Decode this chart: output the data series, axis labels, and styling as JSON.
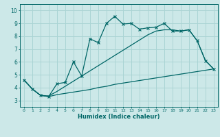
{
  "title": "",
  "xlabel": "Humidex (Indice chaleur)",
  "background_color": "#cce8e8",
  "line_color": "#006666",
  "xlim": [
    -0.5,
    23.5
  ],
  "ylim": [
    2.5,
    10.5
  ],
  "xticks": [
    0,
    1,
    2,
    3,
    4,
    5,
    6,
    7,
    8,
    9,
    10,
    11,
    12,
    13,
    14,
    15,
    16,
    17,
    18,
    19,
    20,
    21,
    22,
    23
  ],
  "yticks": [
    3,
    4,
    5,
    6,
    7,
    8,
    9,
    10
  ],
  "grid_color": "#aad4d4",
  "series1_x": [
    0,
    1,
    2,
    3,
    4,
    5,
    6,
    7,
    8,
    9,
    10,
    11,
    12,
    13,
    14,
    15,
    16,
    17,
    18,
    19,
    20,
    21,
    22,
    23
  ],
  "series1_y": [
    4.6,
    3.9,
    3.4,
    3.3,
    4.3,
    4.4,
    6.0,
    4.9,
    7.8,
    7.5,
    9.0,
    9.55,
    8.95,
    9.0,
    8.55,
    8.65,
    8.7,
    9.0,
    8.4,
    8.4,
    8.5,
    7.65,
    6.1,
    5.45
  ],
  "series2_x": [
    0,
    1,
    2,
    3,
    4,
    5,
    6,
    7,
    8,
    9,
    10,
    11,
    12,
    13,
    14,
    15,
    16,
    17,
    18,
    19,
    20,
    21,
    22,
    23
  ],
  "series2_y": [
    4.6,
    3.9,
    3.4,
    3.3,
    3.45,
    3.55,
    3.65,
    3.75,
    3.85,
    4.0,
    4.1,
    4.25,
    4.35,
    4.45,
    4.55,
    4.65,
    4.75,
    4.85,
    4.95,
    5.05,
    5.15,
    5.25,
    5.35,
    5.45
  ],
  "series3_x": [
    0,
    1,
    2,
    3,
    4,
    5,
    6,
    7,
    8,
    9,
    10,
    11,
    12,
    13,
    14,
    15,
    16,
    17,
    18,
    19,
    20,
    21,
    22,
    23
  ],
  "series3_y": [
    4.6,
    3.9,
    3.4,
    3.35,
    3.7,
    4.1,
    4.5,
    4.9,
    5.3,
    5.7,
    6.1,
    6.5,
    6.9,
    7.3,
    7.7,
    8.1,
    8.4,
    8.5,
    8.5,
    8.4,
    8.5,
    7.65,
    6.1,
    5.45
  ]
}
